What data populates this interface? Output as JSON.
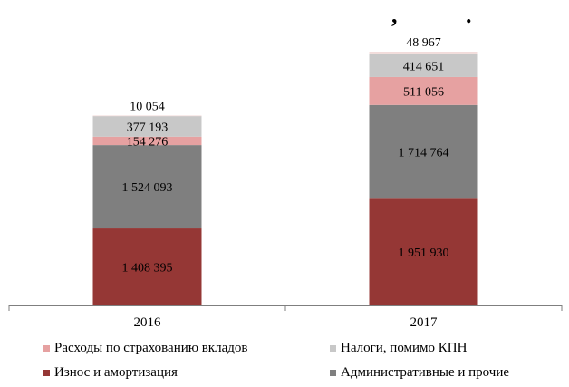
{
  "header": {
    "marks": [
      ",",
      "."
    ]
  },
  "chart_data": {
    "type": "bar",
    "stacked": true,
    "categories": [
      "2016",
      "2017"
    ],
    "series": [
      {
        "name": "Износ и амортизация",
        "values": [
          1408395,
          1951930
        ],
        "labels": [
          "1 408 395",
          "1 951 930"
        ],
        "color": "#953735"
      },
      {
        "name": "Административные и прочие",
        "values": [
          1524093,
          1714764
        ],
        "labels": [
          "1 524 093",
          "1 714 764"
        ],
        "color": "#7f7f7f"
      },
      {
        "name": "Расходы по страхованию вкладов",
        "values": [
          154276,
          511056
        ],
        "labels": [
          "154 276",
          "511 056"
        ],
        "color": "#e6a1a1"
      },
      {
        "name": "Налоги, помимо КПН",
        "values": [
          377193,
          414651
        ],
        "labels": [
          "377 193",
          "414 651"
        ],
        "color": "#c8c8c8"
      },
      {
        "name": "",
        "values": [
          10054,
          48967
        ],
        "labels": [
          "10 054",
          "48 967"
        ],
        "color": "#f2dcdb"
      }
    ],
    "legend": {
      "position": "bottom",
      "order": [
        "Расходы по страхованию вкладов",
        "Налоги, помимо КПН",
        "Износ и амортизация",
        "Административные и прочие"
      ]
    },
    "grid": false
  }
}
